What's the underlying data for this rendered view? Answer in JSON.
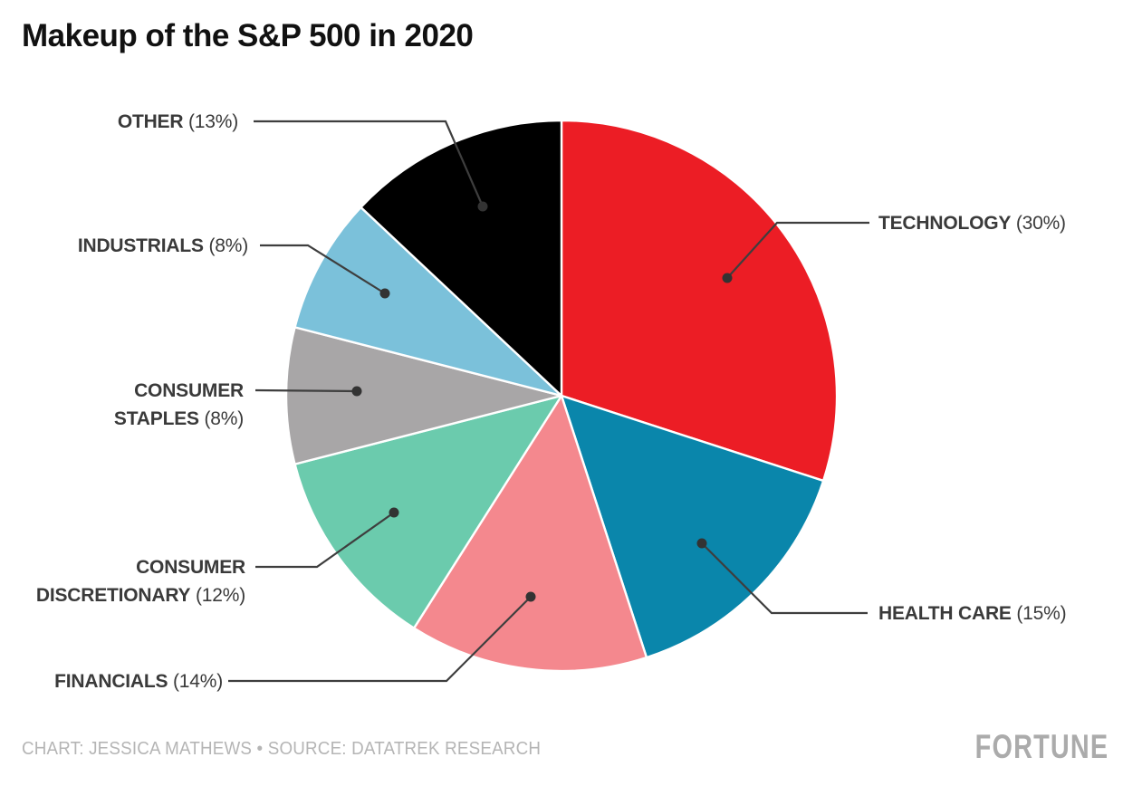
{
  "title": "Makeup of the S&P 500 in 2020",
  "footer": {
    "credit": "CHART: JESSICA MATHEWS • SOURCE: DATATREK RESEARCH",
    "logo": "FORTUNE"
  },
  "colors": {
    "background": "#FFFFFF",
    "title_text": "#111111",
    "label_text": "#3A3A3A",
    "leader_line": "#3E3E3E",
    "leader_dot": "#333333",
    "slice_divider": "#FFFFFF",
    "footer_text": "#B5B5B5",
    "logo_text": "#ABABAB"
  },
  "chart_data": {
    "type": "pie",
    "title": "Makeup of the S&P 500 in 2020",
    "direction": "clockwise",
    "start_angle_deg": 0,
    "legend_position": "callout-labels",
    "total_percent": 100,
    "slices": [
      {
        "label": "TECHNOLOGY",
        "value": 30,
        "pct_text": "(30%)",
        "color": "#EC1D25"
      },
      {
        "label": "HEALTH CARE",
        "value": 15,
        "pct_text": "(15%)",
        "color": "#0A86AB"
      },
      {
        "label": "FINANCIALS",
        "value": 14,
        "pct_text": "(14%)",
        "color": "#F4888E"
      },
      {
        "label": "CONSUMER DISCRETIONARY",
        "value": 12,
        "pct_text": "(12%)",
        "color": "#6BCBAD"
      },
      {
        "label": "CONSUMER STAPLES",
        "value": 8,
        "pct_text": "(8%)",
        "color": "#A8A6A7"
      },
      {
        "label": "INDUSTRIALS",
        "value": 8,
        "pct_text": "(8%)",
        "color": "#7BC1DA"
      },
      {
        "label": "OTHER",
        "value": 13,
        "pct_text": "(13%)",
        "color": "#000000"
      }
    ]
  }
}
